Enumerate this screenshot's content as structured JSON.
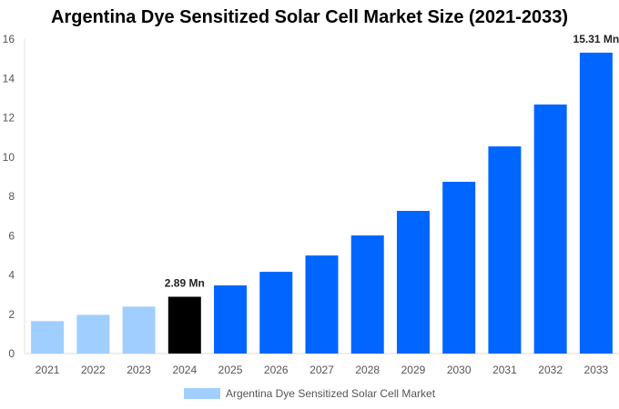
{
  "chart_data": {
    "type": "bar",
    "title": "Argentina Dye Sensitized Solar Cell Market Size (2021-2033)",
    "categories": [
      "2021",
      "2022",
      "2023",
      "2024",
      "2025",
      "2026",
      "2027",
      "2028",
      "2029",
      "2030",
      "2031",
      "2032",
      "2033"
    ],
    "series": [
      {
        "name": "Argentina Dye Sensitized Solar Cell Market",
        "values": [
          1.65,
          1.97,
          2.39,
          2.89,
          3.47,
          4.16,
          4.99,
          6.01,
          7.26,
          8.74,
          10.54,
          12.67,
          15.31
        ]
      }
    ],
    "data_labels": {
      "3": "2.89 Mn",
      "12": "15.31 Mn"
    },
    "bar_colors": {
      "historical": "#a0cfff",
      "base_year": "#000000",
      "forecast": "#0066ff"
    },
    "ylim": [
      0,
      16
    ],
    "yticks": [
      0,
      2,
      4,
      6,
      8,
      10,
      12,
      14,
      16
    ],
    "xlabel": "",
    "ylabel": "",
    "grid": false,
    "legend_position": "bottom"
  }
}
